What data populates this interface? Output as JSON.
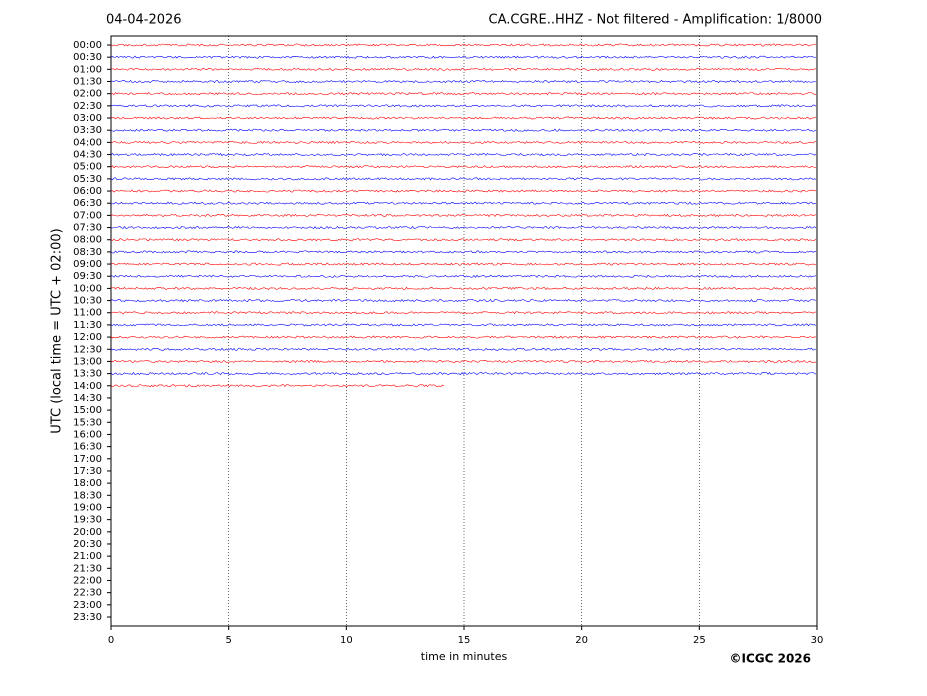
{
  "chart_data": {
    "type": "helicorder",
    "date": "04-04-2026",
    "title": "CA.CGRE..HHZ - Not filtered - Amplification: 1/8000",
    "ylabel": "UTC (local time = UTC + 02:00)",
    "xlabel": "time in minutes",
    "copyright": "©ICGC 2026",
    "categories": [
      "00:00",
      "00:30",
      "01:00",
      "01:30",
      "02:00",
      "02:30",
      "03:00",
      "03:30",
      "04:00",
      "04:30",
      "05:00",
      "05:30",
      "06:00",
      "06:30",
      "07:00",
      "07:30",
      "08:00",
      "08:30",
      "09:00",
      "09:30",
      "10:00",
      "10:30",
      "11:00",
      "11:30",
      "12:00",
      "12:30",
      "13:00",
      "13:30",
      "14:00",
      "14:30",
      "15:00",
      "15:30",
      "16:00",
      "16:30",
      "17:00",
      "17:30",
      "18:00",
      "18:30",
      "19:00",
      "19:30",
      "20:00",
      "20:30",
      "21:00",
      "21:30",
      "22:00",
      "22:30",
      "23:00",
      "23:30"
    ],
    "values": [
      30,
      30,
      30,
      30,
      30,
      30,
      30,
      30,
      30,
      30,
      30,
      30,
      30,
      30,
      30,
      30,
      30,
      30,
      30,
      30,
      30,
      30,
      30,
      30,
      30,
      30,
      30,
      30,
      14.2,
      null,
      null,
      null,
      null,
      null,
      null,
      null,
      null,
      null,
      null,
      null,
      null,
      null,
      null,
      null,
      null,
      null,
      null,
      null
    ],
    "colors": [
      "#ff0000",
      "#0000ff"
    ],
    "xlim": [
      0,
      30
    ],
    "xticks": [
      0,
      5,
      10,
      15,
      20,
      25,
      30
    ],
    "grid": true
  }
}
